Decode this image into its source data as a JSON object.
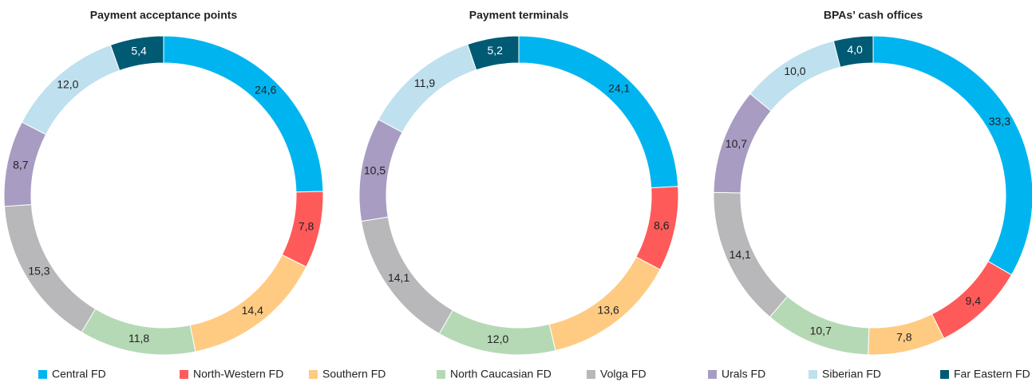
{
  "chart_data": [
    {
      "type": "pie",
      "title": "Payment acceptance points",
      "categories": [
        "Central FD",
        "North-Western FD",
        "Southern FD",
        "North Caucasian FD",
        "Volga FD",
        "Urals FD",
        "Siberian FD",
        "Far Eastern FD"
      ],
      "values": [
        24.6,
        7.8,
        14.4,
        11.8,
        15.3,
        8.7,
        12.0,
        5.4
      ],
      "value_labels": [
        "24,6",
        "7,8",
        "14,4",
        "11,8",
        "15,3",
        "8,7",
        "12,0",
        "5,4"
      ],
      "colors": [
        "#00b5ef",
        "#ff5a5a",
        "#ffcb82",
        "#b5d9b5",
        "#b8b8ba",
        "#a89cc2",
        "#bfe0ee",
        "#005a74"
      ]
    },
    {
      "type": "pie",
      "title": "Payment terminals",
      "categories": [
        "Central FD",
        "North-Western FD",
        "Southern FD",
        "North Caucasian FD",
        "Volga FD",
        "Urals FD",
        "Siberian FD",
        "Far Eastern FD"
      ],
      "values": [
        24.1,
        8.6,
        13.6,
        12.0,
        14.1,
        10.5,
        11.9,
        5.2
      ],
      "value_labels": [
        "24,1",
        "8,6",
        "13,6",
        "12,0",
        "14,1",
        "10,5",
        "11,9",
        "5,2"
      ],
      "colors": [
        "#00b5ef",
        "#ff5a5a",
        "#ffcb82",
        "#b5d9b5",
        "#b8b8ba",
        "#a89cc2",
        "#bfe0ee",
        "#005a74"
      ]
    },
    {
      "type": "pie",
      "title": "BPAs’ cash offices",
      "categories": [
        "Central FD",
        "North-Western FD",
        "Southern FD",
        "North Caucasian FD",
        "Volga FD",
        "Urals FD",
        "Siberian FD",
        "Far Eastern FD"
      ],
      "values": [
        33.3,
        9.4,
        7.8,
        10.7,
        14.1,
        10.7,
        10.0,
        4.0
      ],
      "value_labels": [
        "33,3",
        "9,4",
        "7,8",
        "10,7",
        "14,1",
        "10,7",
        "10,0",
        "4,0"
      ],
      "colors": [
        "#00b5ef",
        "#ff5a5a",
        "#ffcb82",
        "#b5d9b5",
        "#b8b8ba",
        "#a89cc2",
        "#bfe0ee",
        "#005a74"
      ]
    }
  ]
}
